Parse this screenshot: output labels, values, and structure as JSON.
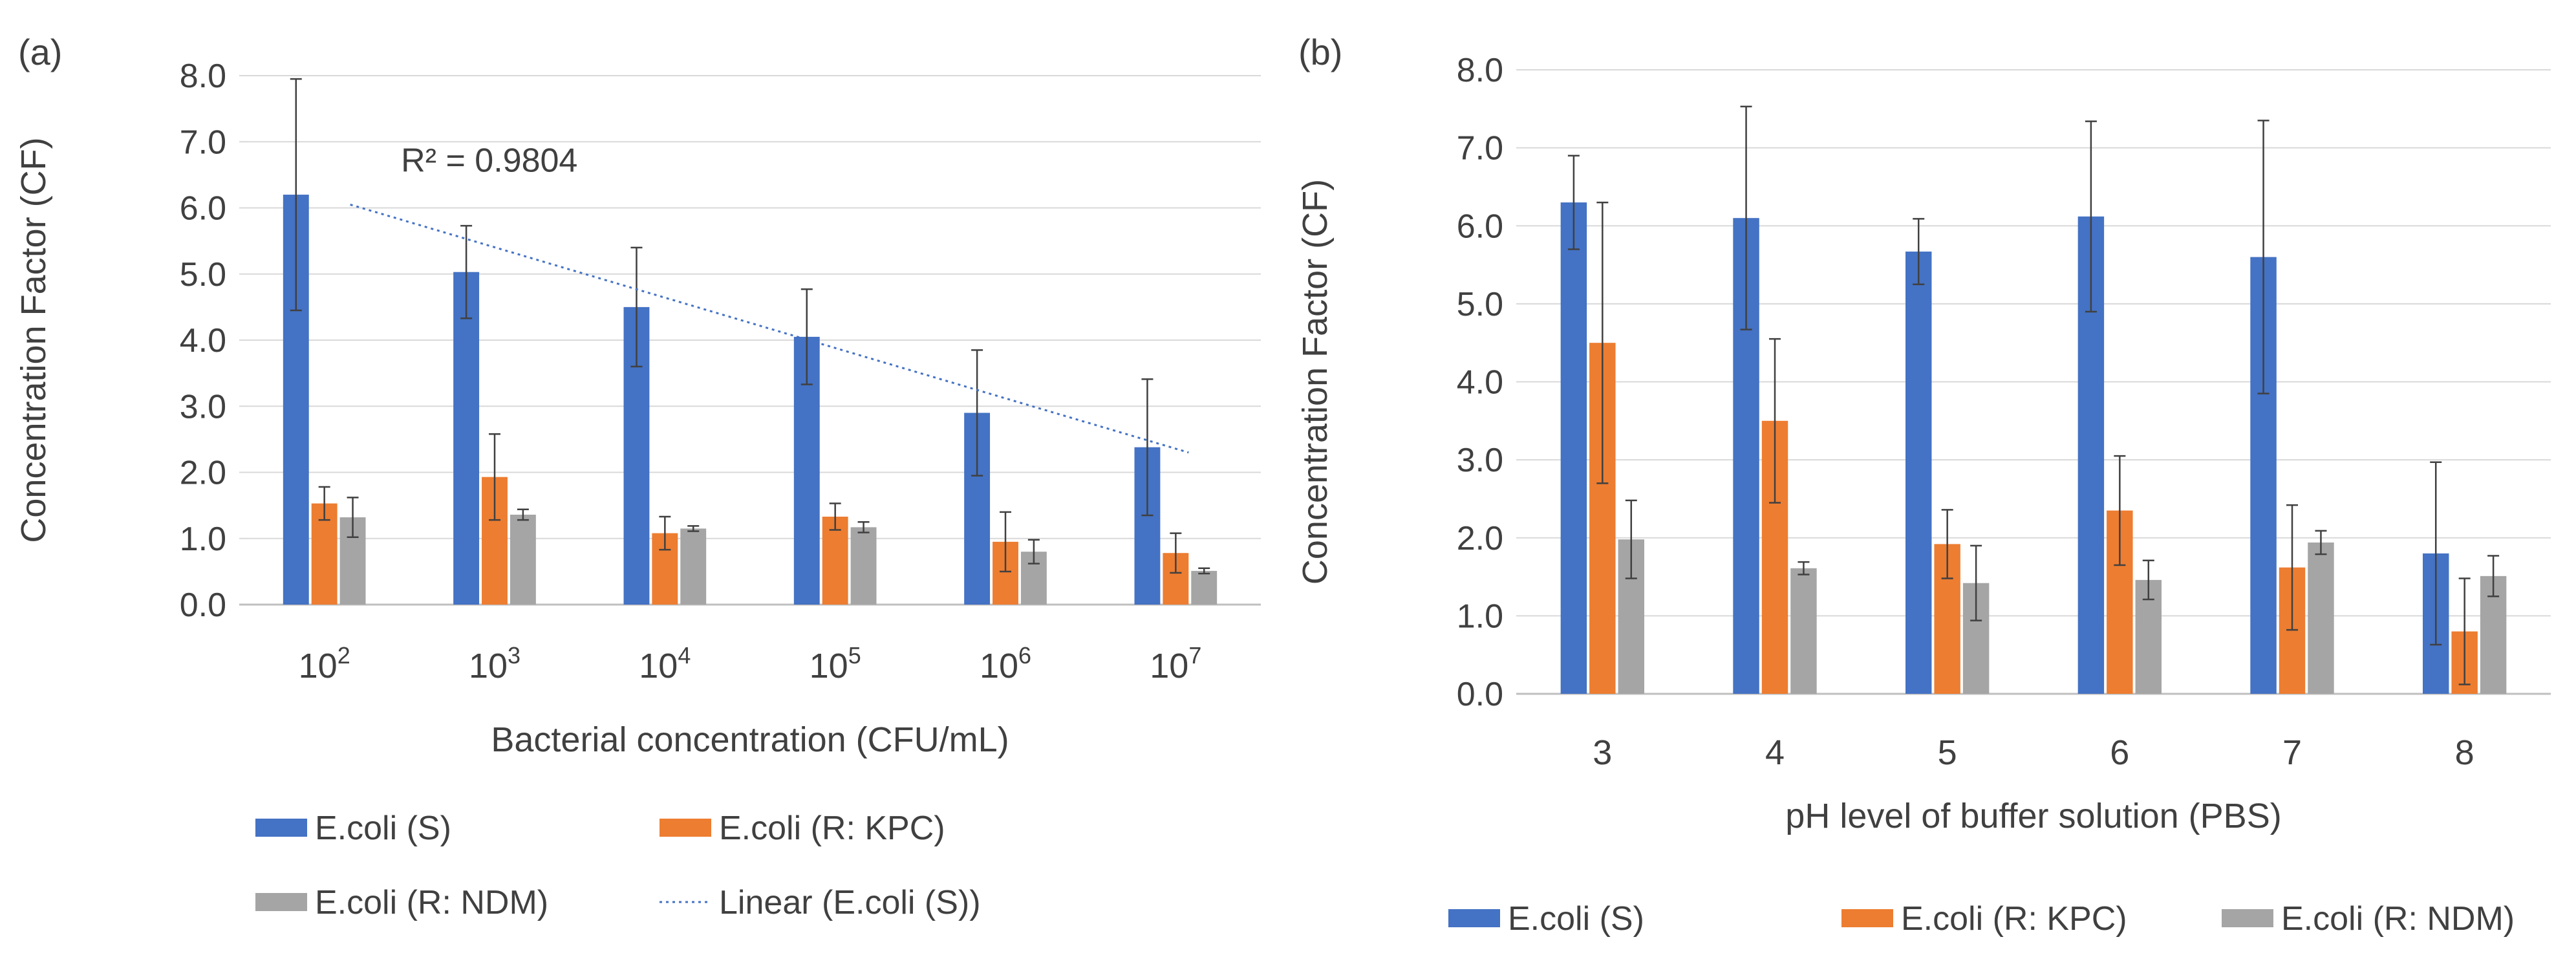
{
  "colors": {
    "s": "#4472C4",
    "kpc": "#ED7D31",
    "ndm": "#A5A5A5",
    "grid": "#D9D9D9",
    "axis": "#BFBFBF",
    "err": "#404040",
    "text": "#404040"
  },
  "chart_data": [
    {
      "type": "bar",
      "panel_label": "(a)",
      "title": "",
      "xlabel": "Bacterial concentration (CFU/mL)",
      "ylabel": "Concentration Factor (CF)",
      "ylim": [
        0,
        8
      ],
      "yticks": [
        "0.0",
        "1.0",
        "2.0",
        "3.0",
        "4.0",
        "5.0",
        "6.0",
        "7.0",
        "8.0"
      ],
      "categories": [
        {
          "base": "10",
          "exp": "2"
        },
        {
          "base": "10",
          "exp": "3"
        },
        {
          "base": "10",
          "exp": "4"
        },
        {
          "base": "10",
          "exp": "5"
        },
        {
          "base": "10",
          "exp": "6"
        },
        {
          "base": "10",
          "exp": "7"
        }
      ],
      "series": [
        {
          "key": "s",
          "name": "E.coli (S)",
          "values": [
            6.2,
            5.03,
            4.5,
            4.05,
            2.9,
            2.38
          ],
          "errors": [
            1.75,
            0.7,
            0.9,
            0.72,
            0.95,
            1.03
          ]
        },
        {
          "key": "kpc",
          "name": "E.coli (R: KPC)",
          "values": [
            1.53,
            1.93,
            1.08,
            1.33,
            0.95,
            0.78
          ],
          "errors": [
            0.25,
            0.65,
            0.25,
            0.2,
            0.45,
            0.3
          ]
        },
        {
          "key": "ndm",
          "name": "E.coli (R: NDM)",
          "values": [
            1.32,
            1.36,
            1.15,
            1.17,
            0.8,
            0.51
          ],
          "errors": [
            0.3,
            0.08,
            0.04,
            0.08,
            0.18,
            0.04
          ]
        }
      ],
      "trendline": {
        "name": "Linear (E.coli (S))",
        "start": 6.05,
        "end": 2.3,
        "r2_text": "R² = 0.9804"
      },
      "legend": [
        "E.coli (S)",
        "E.coli (R: KPC)",
        "E.coli (R: NDM)",
        "Linear (E.coli (S))"
      ],
      "legend_position": "bottom"
    },
    {
      "type": "bar",
      "panel_label": "(b)",
      "title": "",
      "xlabel": "pH level of buffer solution (PBS)",
      "ylabel": "Concentration Factor (CF)",
      "ylim": [
        0,
        8
      ],
      "yticks": [
        "0.0",
        "1.0",
        "2.0",
        "3.0",
        "4.0",
        "5.0",
        "6.0",
        "7.0",
        "8.0"
      ],
      "categories": [
        "3",
        "4",
        "5",
        "6",
        "7",
        "8"
      ],
      "series": [
        {
          "key": "s",
          "name": "E.coli (S)",
          "values": [
            6.3,
            6.1,
            5.67,
            6.12,
            5.6,
            1.8
          ],
          "errors": [
            0.6,
            1.43,
            0.42,
            1.22,
            1.75,
            1.17
          ]
        },
        {
          "key": "kpc",
          "name": "E.coli (R: KPC)",
          "values": [
            4.5,
            3.5,
            1.92,
            2.35,
            1.62,
            0.8
          ],
          "errors": [
            1.8,
            1.05,
            0.44,
            0.7,
            0.8,
            0.68
          ]
        },
        {
          "key": "ndm",
          "name": "E.coli (R: NDM)",
          "values": [
            1.98,
            1.61,
            1.42,
            1.46,
            1.94,
            1.51
          ],
          "errors": [
            0.5,
            0.08,
            0.48,
            0.25,
            0.15,
            0.26
          ]
        }
      ],
      "legend": [
        "E.coli (S)",
        "E.coli (R: KPC)",
        "E.coli (R: NDM)"
      ],
      "legend_position": "bottom"
    }
  ]
}
